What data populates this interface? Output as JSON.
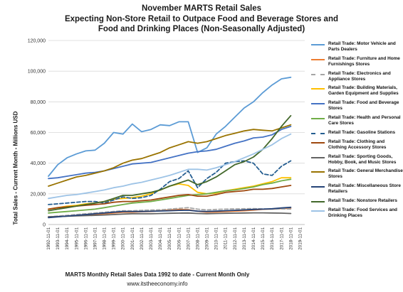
{
  "title_lines": [
    "November MARTS Retail Sales",
    "Expecting Non-Store Retail to Outpace Food and Beverage Stores and",
    "Food and Drinking Places (Non-Seasonally Adjusted)"
  ],
  "footer": {
    "source": "MARTS Monthly Retail Sales Data 1992 to date - Current Month Only",
    "website": "www.itstheeconomy.info"
  },
  "chart_data": {
    "type": "line",
    "title": "November MARTS Retail Sales Expecting Non-Store Retail to Outpace Food and Beverage Stores and Food and Drinking Places (Non-Seasonally Adjusted)",
    "ylabel": "Total Sales - Current Month - Millions USD",
    "xlabel": "",
    "ylim": [
      0,
      120000
    ],
    "yticks": [
      0,
      20000,
      40000,
      60000,
      80000,
      100000,
      120000
    ],
    "ytick_labels": [
      "0",
      "20,000",
      "40,000",
      "60,000",
      "80,000",
      "100,000",
      "120,000"
    ],
    "xtick_labels": [
      "1992-11-01",
      "1993-11-01",
      "1994-11-01",
      "1995-11-01",
      "1996-11-01",
      "1997-11-01",
      "1998-11-01",
      "1999-11-01",
      "2000-11-01",
      "2001-11-01",
      "2002-11-01",
      "2003-11-01",
      "2004-11-01",
      "2005-11-01",
      "2006-11-01",
      "2007-11-01",
      "2008-11-01",
      "2009-11-01",
      "2010-11-01",
      "2011-11-01",
      "2012-11-01",
      "2013-11-01",
      "2014-11-01",
      "2015-11-01",
      "2016-11-01",
      "2017-11-01",
      "2018-11-01",
      "2019-11-01"
    ],
    "x": [
      1992,
      1993,
      1994,
      1995,
      1996,
      1997,
      1998,
      1999,
      2000,
      2001,
      2002,
      2003,
      2004,
      2005,
      2006,
      2007,
      2008,
      2009,
      2010,
      2011,
      2012,
      2013,
      2014,
      2015,
      2016,
      2017,
      2018
    ],
    "grid": true,
    "legend_position": "right",
    "series": [
      {
        "name": "Retail Trade: Motor Vehicle and Parts Dealers",
        "color": "#5b9bd5",
        "dash": "solid",
        "values": [
          31500,
          39000,
          43500,
          46000,
          48000,
          48500,
          53000,
          60000,
          59000,
          65500,
          60500,
          62000,
          65000,
          64500,
          67000,
          67000,
          47000,
          50000,
          59000,
          64000,
          70000,
          76000,
          80000,
          86000,
          91000,
          95000,
          96000
        ]
      },
      {
        "name": "Retail Trade: Furniture and Home Furnishings Stores",
        "color": "#ed7d31",
        "dash": "solid",
        "values": [
          5000,
          5200,
          5500,
          5800,
          6200,
          6500,
          7000,
          7500,
          8000,
          8000,
          8300,
          8500,
          9000,
          9500,
          9800,
          9700,
          8600,
          8000,
          8200,
          8500,
          8700,
          9000,
          9400,
          9900,
          10100,
          10400,
          10600
        ]
      },
      {
        "name": "Retail Trade: Electronics and Appliance Stores",
        "color": "#a5a5a5",
        "dash": "dash",
        "values": [
          5000,
          5500,
          6000,
          6500,
          7000,
          7500,
          8000,
          8500,
          9000,
          8900,
          9200,
          9400,
          9600,
          10000,
          10500,
          11000,
          10000,
          9500,
          9800,
          10000,
          10200,
          10300,
          10400,
          10200,
          10000,
          10200,
          10100
        ]
      },
      {
        "name": "Retail Trade: Building Materials, Garden Equipment and Supplies",
        "color": "#ffc000",
        "dash": "solid",
        "values": [
          10000,
          11000,
          12000,
          12500,
          13500,
          14000,
          15000,
          16500,
          17000,
          17500,
          18500,
          20000,
          22500,
          25000,
          26500,
          25500,
          21000,
          20000,
          20500,
          22000,
          23000,
          24000,
          25000,
          26500,
          28000,
          30500,
          30500
        ]
      },
      {
        "name": "Retail Trade: Food and Beverage Stores",
        "color": "#4472c4",
        "dash": "solid",
        "values": [
          30000,
          30500,
          31500,
          32500,
          33500,
          34000,
          35000,
          36500,
          38000,
          39500,
          40000,
          40500,
          42000,
          43500,
          45000,
          46500,
          47500,
          48000,
          49000,
          51000,
          53000,
          54500,
          56500,
          57000,
          58500,
          62000,
          64000
        ]
      },
      {
        "name": "Retail Trade: Health and Personal Care Stores",
        "color": "#70ad47",
        "dash": "solid",
        "values": [
          7500,
          8000,
          8500,
          9000,
          9500,
          10000,
          11000,
          12000,
          13000,
          14000,
          14500,
          15000,
          16000,
          17000,
          18000,
          19000,
          19500,
          20000,
          21000,
          22000,
          22500,
          23500,
          24500,
          26000,
          27000,
          28500,
          29500
        ]
      },
      {
        "name": "Retail Trade: Gasoline Stations",
        "color": "#255e91",
        "dash": "dash",
        "values": [
          13000,
          13500,
          14000,
          14500,
          15000,
          15000,
          14000,
          16000,
          18000,
          17000,
          17500,
          19000,
          23000,
          28000,
          30000,
          35000,
          24000,
          30000,
          34000,
          40000,
          41000,
          41500,
          40000,
          33000,
          32000,
          38000,
          41500
        ]
      },
      {
        "name": "Retail Trade: Clothing and Clothing Accessory Stores",
        "color": "#9e480e",
        "dash": "solid",
        "values": [
          10000,
          11000,
          11500,
          12000,
          12500,
          13000,
          13500,
          14500,
          15000,
          15000,
          15500,
          16000,
          17000,
          18000,
          19000,
          19500,
          18500,
          18500,
          19500,
          21000,
          21500,
          22000,
          23000,
          23000,
          23500,
          24500,
          25500
        ]
      },
      {
        "name": "Retail Trade: Sporting Goods, Hobby, Book, and Music Stores",
        "color": "#636363",
        "dash": "solid",
        "values": [
          5000,
          5200,
          5400,
          5600,
          5800,
          6000,
          6200,
          6500,
          6800,
          7000,
          7000,
          7000,
          7200,
          7300,
          7400,
          7500,
          7200,
          7000,
          7200,
          7300,
          7400,
          7500,
          7600,
          7600,
          7500,
          7400,
          7200
        ]
      },
      {
        "name": "Retail Trade: General Merchandise Stores",
        "color": "#997300",
        "dash": "solid",
        "values": [
          25000,
          27000,
          29000,
          31000,
          32000,
          33500,
          35000,
          37000,
          40000,
          42000,
          43000,
          45000,
          47000,
          50000,
          52000,
          54000,
          53000,
          54000,
          56000,
          58000,
          59500,
          61000,
          62000,
          61500,
          61000,
          63000,
          65000
        ]
      },
      {
        "name": "Retail Trade: Miscellaneous Store Retailers",
        "color": "#264478",
        "dash": "solid",
        "values": [
          4500,
          5000,
          5500,
          6000,
          6500,
          7000,
          7500,
          8000,
          8500,
          8500,
          8500,
          8600,
          8800,
          9000,
          9200,
          9300,
          8700,
          8500,
          8700,
          9000,
          9200,
          9500,
          9800,
          10000,
          10300,
          10800,
          11200
        ]
      },
      {
        "name": "Retail Trade: Nonstore Retailers",
        "color": "#43682b",
        "dash": "solid",
        "values": [
          9000,
          10000,
          11000,
          12000,
          13000,
          14000,
          15000,
          17000,
          19000,
          19000,
          20000,
          21000,
          22500,
          25000,
          27000,
          29000,
          26000,
          28000,
          31000,
          35000,
          39000,
          41000,
          44000,
          49000,
          56000,
          64000,
          71000
        ]
      },
      {
        "name": "Retail Trade: Food Services and Drinking Places",
        "color": "#9dc3e6",
        "dash": "solid",
        "values": [
          17000,
          18000,
          19000,
          19500,
          20500,
          21500,
          22500,
          24000,
          25000,
          26500,
          27500,
          29000,
          30500,
          32000,
          34000,
          36000,
          36000,
          35500,
          37000,
          39000,
          41000,
          43500,
          46000,
          49000,
          52000,
          56000,
          59000
        ]
      }
    ]
  }
}
